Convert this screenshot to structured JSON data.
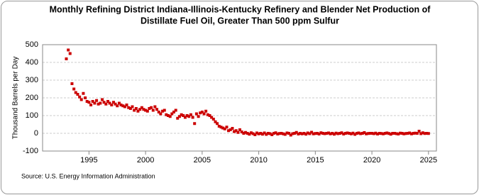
{
  "chart_data": {
    "type": "scatter",
    "title": [
      "Monthly Refining District Indiana-Illinois-Kentucky Refinery and Blender Net Production of",
      "Distillate Fuel Oil, Greater Than 500 ppm Sulfur"
    ],
    "y_label": "Thousand Barrels per Day",
    "source": "Source: U.S. Energy Information Administration",
    "color": "#cc0000",
    "grid": true,
    "xlim": [
      1990.9,
      2025.7
    ],
    "xticks": [
      1995,
      2000,
      2005,
      2010,
      2015,
      2020,
      2025
    ],
    "ylim": [
      -100,
      500
    ],
    "yticks": [
      -100,
      0,
      100,
      200,
      300,
      400,
      500
    ],
    "x": [
      1993,
      1993.17,
      1993.33,
      1993.5,
      1993.67,
      1993.83,
      1994,
      1994.17,
      1994.33,
      1994.5,
      1994.67,
      1994.83,
      1995,
      1995.17,
      1995.33,
      1995.5,
      1995.67,
      1995.83,
      1996,
      1996.17,
      1996.33,
      1996.5,
      1996.67,
      1996.83,
      1997,
      1997.17,
      1997.33,
      1997.5,
      1997.67,
      1997.83,
      1998,
      1998.17,
      1998.33,
      1998.5,
      1998.67,
      1998.83,
      1999,
      1999.17,
      1999.33,
      1999.5,
      1999.67,
      1999.83,
      2000,
      2000.17,
      2000.33,
      2000.5,
      2000.67,
      2000.83,
      2001,
      2001.17,
      2001.33,
      2001.5,
      2001.67,
      2001.83,
      2002,
      2002.17,
      2002.33,
      2002.5,
      2002.67,
      2002.83,
      2003,
      2003.17,
      2003.33,
      2003.5,
      2003.67,
      2003.83,
      2004,
      2004.17,
      2004.33,
      2004.5,
      2004.67,
      2004.83,
      2005,
      2005.17,
      2005.33,
      2005.5,
      2005.67,
      2005.83,
      2006,
      2006.17,
      2006.33,
      2006.5,
      2006.67,
      2006.83,
      2007,
      2007.17,
      2007.33,
      2007.5,
      2007.67,
      2007.83,
      2008,
      2008.17,
      2008.33,
      2008.5,
      2008.67,
      2008.83,
      2009,
      2009.17,
      2009.33,
      2009.5,
      2009.67,
      2009.83,
      2010,
      2010.17,
      2010.33,
      2010.5,
      2010.67,
      2010.83,
      2011,
      2011.17,
      2011.33,
      2011.5,
      2011.67,
      2011.83,
      2012,
      2012.17,
      2012.33,
      2012.5,
      2012.67,
      2012.83,
      2013,
      2013.17,
      2013.33,
      2013.5,
      2013.67,
      2013.83,
      2014,
      2014.17,
      2014.33,
      2014.5,
      2014.67,
      2014.83,
      2015,
      2015.17,
      2015.33,
      2015.5,
      2015.67,
      2015.83,
      2016,
      2016.17,
      2016.33,
      2016.5,
      2016.67,
      2016.83,
      2017,
      2017.17,
      2017.33,
      2017.5,
      2017.67,
      2017.83,
      2018,
      2018.17,
      2018.33,
      2018.5,
      2018.67,
      2018.83,
      2019,
      2019.17,
      2019.33,
      2019.5,
      2019.67,
      2019.83,
      2020,
      2020.17,
      2020.33,
      2020.5,
      2020.67,
      2020.83,
      2021,
      2021.17,
      2021.33,
      2021.5,
      2021.67,
      2021.83,
      2022,
      2022.17,
      2022.33,
      2022.5,
      2022.67,
      2022.83,
      2023,
      2023.17,
      2023.33,
      2023.5,
      2023.67,
      2023.83,
      2024,
      2024.17,
      2024.33,
      2024.5,
      2024.67,
      2024.83,
      2025
    ],
    "values": [
      420,
      470,
      450,
      280,
      250,
      230,
      220,
      205,
      190,
      225,
      200,
      180,
      175,
      160,
      180,
      170,
      185,
      165,
      170,
      190,
      175,
      165,
      180,
      170,
      160,
      175,
      165,
      155,
      170,
      160,
      155,
      150,
      160,
      145,
      140,
      150,
      130,
      140,
      125,
      135,
      145,
      135,
      130,
      125,
      140,
      145,
      130,
      150,
      135,
      120,
      110,
      125,
      130,
      105,
      100,
      95,
      110,
      120,
      130,
      85,
      95,
      105,
      100,
      90,
      100,
      95,
      105,
      90,
      55,
      110,
      95,
      115,
      120,
      110,
      125,
      105,
      100,
      90,
      80,
      65,
      55,
      40,
      35,
      30,
      25,
      35,
      15,
      20,
      28,
      10,
      15,
      5,
      20,
      8,
      0,
      5,
      0,
      -5,
      3,
      -2,
      -8,
      2,
      -3,
      0,
      -5,
      2,
      -6,
      0,
      -2,
      -8,
      0,
      3,
      -4,
      -1,
      0,
      -3,
      -6,
      2,
      0,
      -10,
      -2,
      0,
      5,
      -4,
      0,
      -3,
      0,
      -5,
      2,
      -2,
      6,
      -3,
      -1,
      0,
      -4,
      3,
      0,
      -2,
      0,
      2,
      -3,
      0,
      -5,
      1,
      -2,
      0,
      3,
      -4,
      0,
      2,
      0,
      -3,
      1,
      -6,
      0,
      2,
      -2,
      0,
      4,
      -3,
      -1,
      0,
      0,
      -2,
      1,
      -4,
      0,
      -1,
      -3,
      0,
      2,
      -1,
      -5,
      0,
      0,
      -2,
      -4,
      1,
      0,
      -3,
      -1,
      0,
      2,
      -3,
      0,
      1,
      0,
      12,
      -2,
      3,
      -1,
      0,
      -1
    ]
  }
}
